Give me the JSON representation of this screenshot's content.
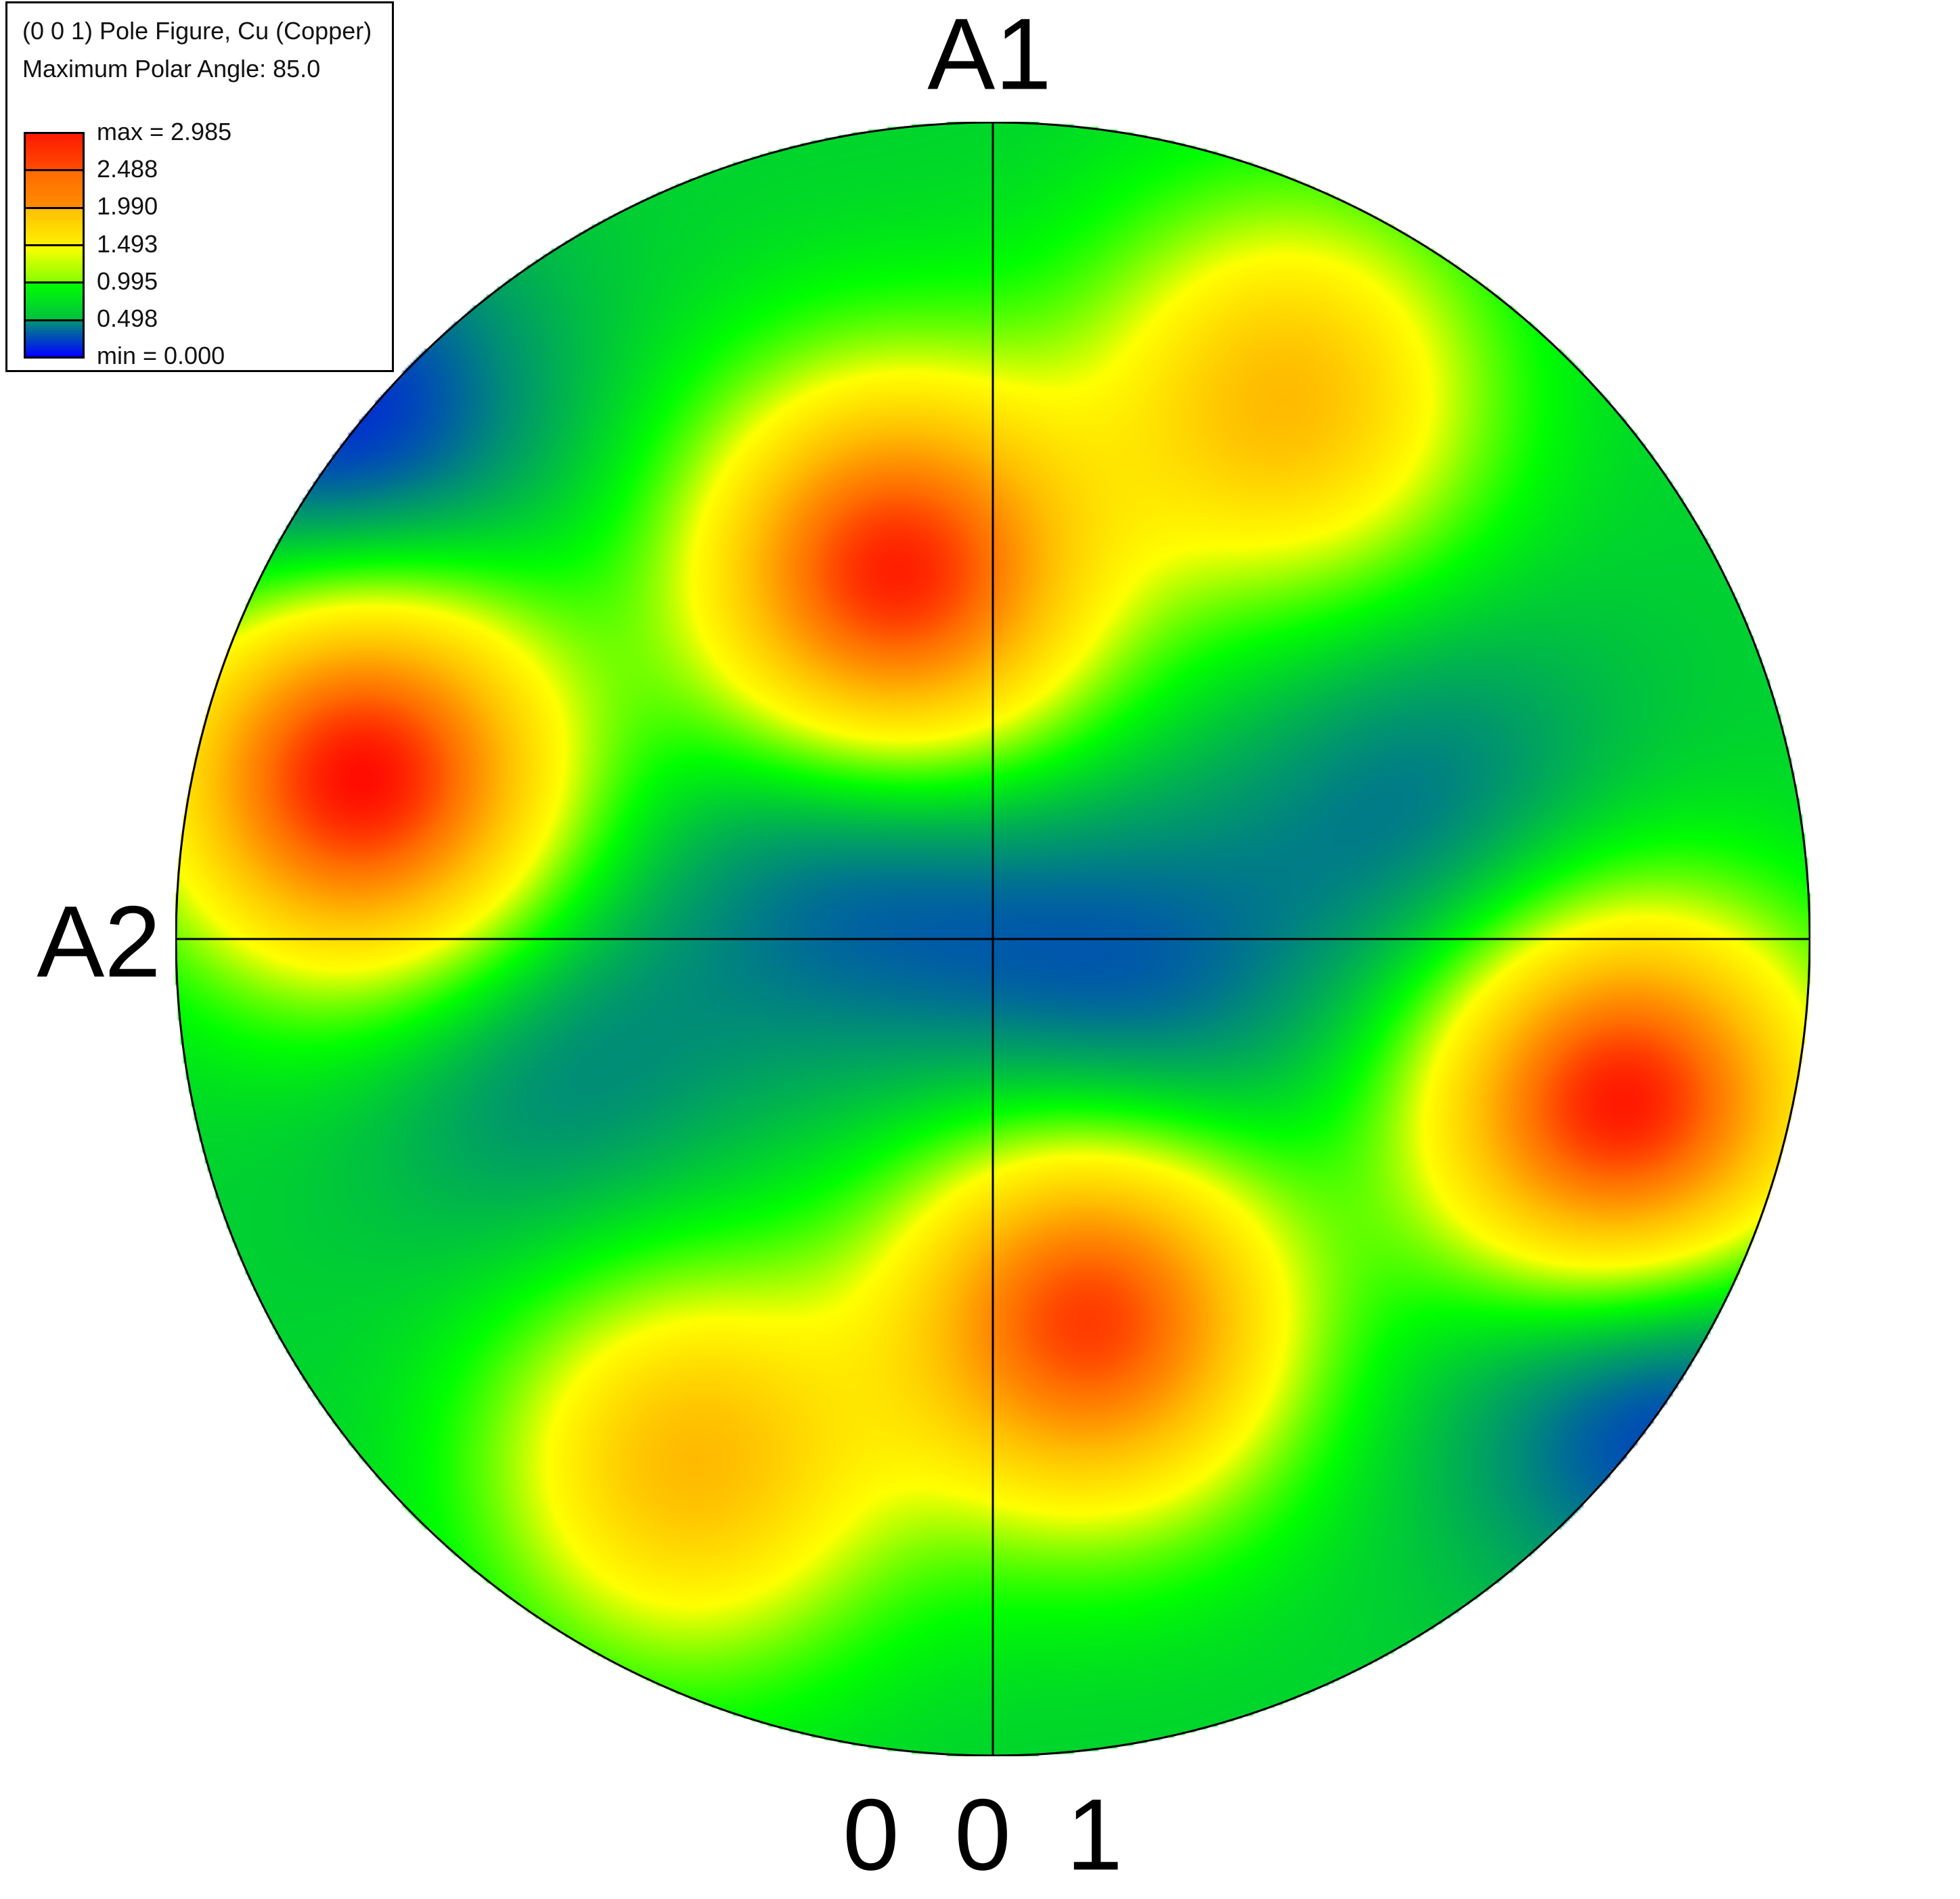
{
  "chart_data": {
    "type": "heatmap",
    "title": "(0 0 1) Pole Figure, Cu (Copper)",
    "subtitle": "Maximum Polar Angle: 85.0",
    "projection_label": "0 0 1",
    "axis_labels": {
      "top": "A1",
      "left": "A2"
    },
    "colorbar": {
      "levels": [
        2.985,
        2.488,
        1.99,
        1.493,
        0.995,
        0.498,
        0.0
      ],
      "labels": [
        "max = 2.985",
        "2.488",
        "1.990",
        "1.493",
        "0.995",
        "0.498",
        "min = 0.000"
      ],
      "colors": [
        [
          "#ff1a00",
          "#ff4a00"
        ],
        [
          "#ff6a00",
          "#ff8c00"
        ],
        [
          "#ffc000",
          "#ffee00"
        ],
        [
          "#ffff00",
          "#88ff00"
        ],
        [
          "#00ff00",
          "#00c040"
        ],
        [
          "#00907a",
          "#0000ff"
        ]
      ]
    },
    "max_polar_angle": 85.0,
    "background_intensity": 0.8,
    "features": [
      {
        "x": -0.12,
        "y": 0.44,
        "value": 2.9
      },
      {
        "x": -0.77,
        "y": 0.2,
        "value": 2.98
      },
      {
        "x": 0.36,
        "y": 0.66,
        "value": 2.0
      },
      {
        "x": 0.77,
        "y": -0.21,
        "value": 2.98
      },
      {
        "x": 0.12,
        "y": -0.46,
        "value": 2.75
      },
      {
        "x": -0.37,
        "y": -0.64,
        "value": 2.0
      },
      {
        "x": -0.16,
        "y": 0.1,
        "value": 0.3
      },
      {
        "x": 0.16,
        "y": -0.09,
        "value": 0.3
      },
      {
        "x": 0.53,
        "y": 0.15,
        "value": 0.4
      },
      {
        "x": -0.54,
        "y": -0.15,
        "value": 0.45
      },
      {
        "x": -0.8,
        "y": 0.62,
        "value": 0.1
      },
      {
        "x": 0.82,
        "y": -0.55,
        "value": 0.1
      }
    ]
  }
}
